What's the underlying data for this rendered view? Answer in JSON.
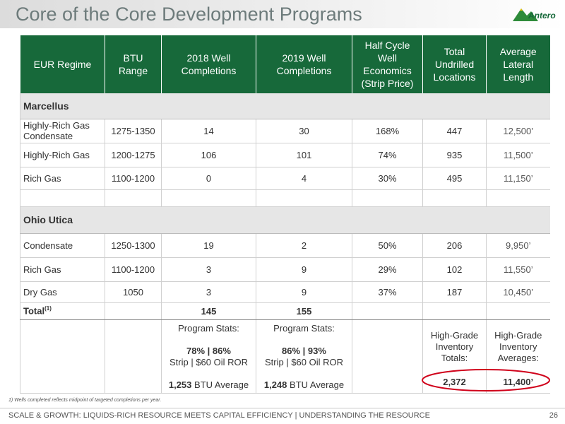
{
  "header": {
    "title": "Core of the Core Development Programs",
    "logo": "Antero"
  },
  "table": {
    "columns": [
      "EUR Regime",
      "BTU Range",
      "2018 Well Completions",
      "2019 Well Completions",
      "Half Cycle Well Economics (Strip Price)",
      "Total Undrilled Locations",
      "Average Lateral Length"
    ],
    "sections": [
      {
        "name": "Marcellus",
        "rows": [
          [
            "Highly-Rich Gas Condensate",
            "1275-1350",
            "14",
            "30",
            "168%",
            "447",
            "12,500’"
          ],
          [
            "Highly-Rich Gas",
            "1200-1275",
            "106",
            "101",
            "74%",
            "935",
            "11,500’"
          ],
          [
            "Rich Gas",
            "1100-1200",
            "0",
            "4",
            "30%",
            "495",
            "11,150’"
          ]
        ]
      },
      {
        "name": "Ohio Utica",
        "rows": [
          [
            "Condensate",
            "1250-1300",
            "19",
            "2",
            "50%",
            "206",
            "9,950’"
          ],
          [
            "Rich Gas",
            "1100-1200",
            "3",
            "9",
            "29%",
            "102",
            "11,550’"
          ],
          [
            "Dry Gas",
            "1050",
            "3",
            "9",
            "37%",
            "187",
            "10,450’"
          ]
        ]
      }
    ],
    "total": {
      "label": "Total",
      "note": "(1)",
      "values": [
        "145",
        "155"
      ]
    },
    "stats": {
      "completions_2018": {
        "heading": "Program Stats:",
        "split": "78% | 86%",
        "basis": "Strip | $60 Oil ROR",
        "btu_value": "1,253",
        "btu_label": "BTU Average"
      },
      "completions_2019": {
        "heading": "Program Stats:",
        "split": "86% | 93%",
        "basis": "Strip | $60 Oil ROR",
        "btu_value": "1,248",
        "btu_label": "BTU Average"
      },
      "locations": {
        "heading": "High-Grade Inventory Totals:",
        "value": "2,372"
      },
      "lateral": {
        "heading": "High-Grade Inventory Averages:",
        "value": "11,400’"
      }
    }
  },
  "footnote": "1)  Wells completed reflects midpoint of targeted completions per year.",
  "footer": {
    "text": "SCALE & GROWTH: LIQUIDS-RICH RESOURCE MEETS CAPITAL EFFICIENCY | UNDERSTANDING THE RESOURCE",
    "page": "26"
  }
}
